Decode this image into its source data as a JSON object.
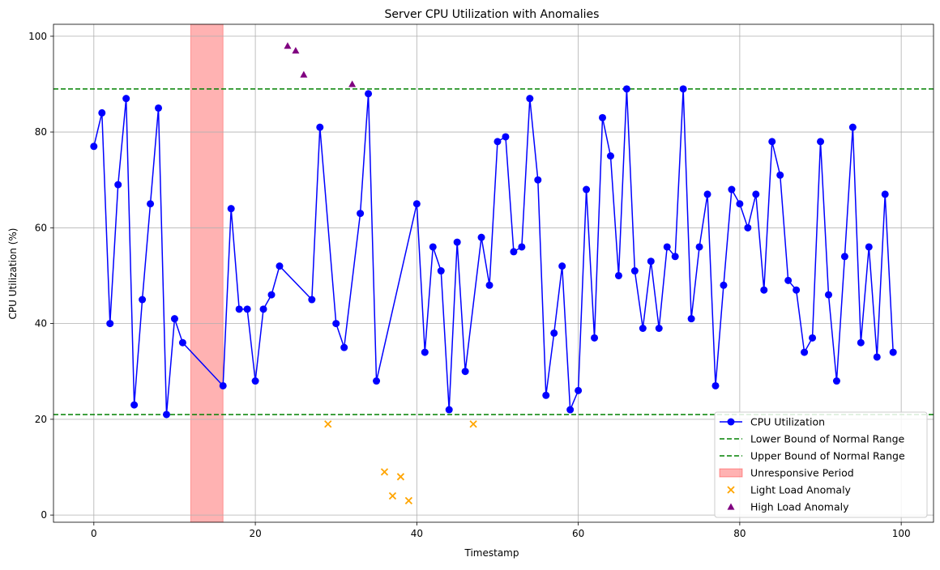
{
  "chart_data": {
    "type": "line",
    "title": "Server CPU Utilization with Anomalies",
    "xlabel": "Timestamp",
    "ylabel": "CPU Utilization (%)",
    "xlim": [
      -5,
      104
    ],
    "ylim": [
      -1.5,
      102.5
    ],
    "x_ticks": [
      0,
      20,
      40,
      60,
      80,
      100
    ],
    "y_ticks": [
      0,
      20,
      40,
      60,
      80,
      100
    ],
    "grid": true,
    "legend_position": "bottom-right",
    "colors": {
      "cpu": "#0000ff",
      "bounds": "#008000",
      "unresponsive": "#ff0000",
      "light_anomaly": "#ffa500",
      "high_anomaly": "#800080"
    },
    "cpu_series": {
      "name": "CPU Utilization",
      "x": [
        0,
        1,
        2,
        3,
        4,
        5,
        6,
        7,
        8,
        9,
        10,
        11,
        16,
        17,
        18,
        19,
        20,
        21,
        22,
        23,
        27,
        28,
        30,
        31,
        33,
        34,
        35,
        40,
        41,
        42,
        43,
        44,
        45,
        46,
        48,
        49,
        50,
        51,
        52,
        53,
        54,
        55,
        56,
        57,
        58,
        59,
        60,
        61,
        62,
        63,
        64,
        65,
        66,
        67,
        68,
        69,
        70,
        71,
        72,
        73,
        74,
        75,
        76,
        77,
        78,
        79,
        80,
        81,
        82,
        83,
        84,
        85,
        86,
        87,
        88,
        89,
        90,
        91,
        92,
        93,
        94,
        95,
        96,
        97,
        98,
        99
      ],
      "y": [
        77,
        84,
        40,
        69,
        87,
        23,
        45,
        65,
        85,
        21,
        41,
        36,
        27,
        64,
        43,
        43,
        28,
        43,
        46,
        52,
        45,
        81,
        40,
        35,
        63,
        88,
        28,
        65,
        34,
        56,
        51,
        22,
        57,
        30,
        58,
        48,
        78,
        79,
        55,
        56,
        87,
        70,
        25,
        38,
        52,
        22,
        26,
        68,
        37,
        83,
        75,
        50,
        89,
        51,
        39,
        53,
        39,
        56,
        54,
        89,
        41,
        56,
        67,
        27,
        48,
        68,
        65,
        60,
        67,
        47,
        78,
        71,
        49,
        47,
        34,
        37,
        78,
        46,
        28,
        54,
        81,
        36,
        56,
        33,
        67,
        34
      ]
    },
    "lower_bound": {
      "name": "Lower Bound of Normal Range",
      "value": 21
    },
    "upper_bound": {
      "name": "Upper Bound of Normal Range",
      "value": 89
    },
    "unresponsive_period": {
      "name": "Unresponsive Period",
      "start": 12,
      "end": 16
    },
    "light_load_anomalies": {
      "name": "Light Load Anomaly",
      "x": [
        29,
        36,
        37,
        38,
        39,
        47
      ],
      "y": [
        19,
        9,
        4,
        8,
        3,
        19
      ]
    },
    "high_load_anomalies": {
      "name": "High Load Anomaly",
      "x": [
        24,
        25,
        26,
        32
      ],
      "y": [
        98,
        97,
        92,
        90
      ]
    }
  }
}
